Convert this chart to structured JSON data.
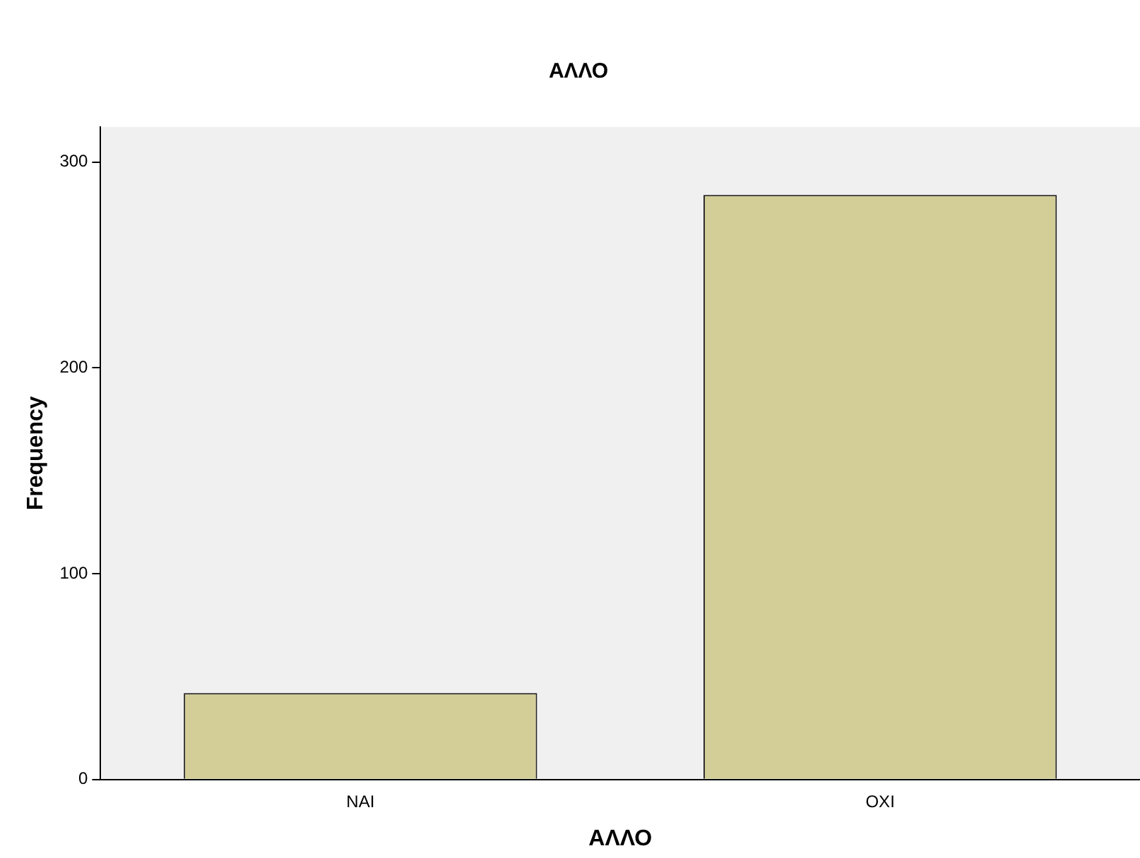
{
  "chart_data": {
    "type": "bar",
    "title": "ΑΛΛΟ",
    "xlabel": "ΑΛΛΟ",
    "ylabel": "Frequency",
    "categories": [
      "ΝΑΙ",
      "ΟΧΙ"
    ],
    "values": [
      42,
      284
    ],
    "color": "#d3ce97",
    "ylim": [
      0,
      317
    ],
    "yticks": [
      0,
      100,
      200,
      300
    ],
    "grid": false,
    "legend": false
  }
}
